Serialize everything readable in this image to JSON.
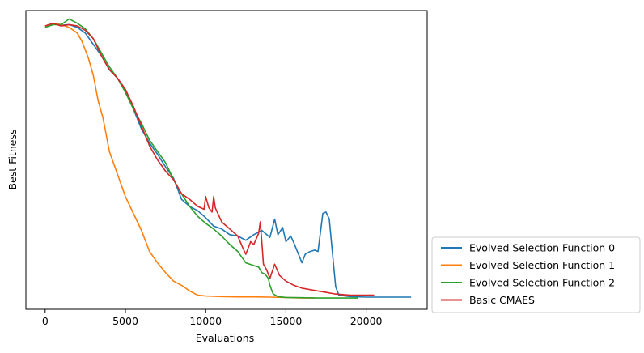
{
  "chart_data": {
    "type": "line",
    "title": "",
    "xlabel": "Evaluations",
    "ylabel": "Best Fitness",
    "xlim": [
      -1200,
      23800
    ],
    "ylim": [
      -0.3,
      10.3
    ],
    "xticks": [
      0,
      5000,
      10000,
      15000,
      20000
    ],
    "xtick_labels": [
      "0",
      "5000",
      "10000",
      "15000",
      "20000"
    ],
    "yticks_shown": false,
    "grid": false,
    "legend_placement": "outside-bottom-right",
    "series": [
      {
        "name": "Evolved Selection Function 0",
        "color": "#1f77b4",
        "x": [
          0,
          500,
          1000,
          1500,
          2000,
          2500,
          3000,
          3500,
          4000,
          4500,
          5000,
          5500,
          6000,
          6500,
          7000,
          7500,
          8000,
          8500,
          9000,
          9500,
          10000,
          10500,
          11000,
          11500,
          12000,
          12500,
          13000,
          13500,
          14000,
          14300,
          14500,
          14800,
          15000,
          15300,
          15500,
          16000,
          16200,
          16500,
          16800,
          17000,
          17300,
          17500,
          17700,
          17900,
          18100,
          18300,
          19000,
          20000,
          21000,
          22000,
          22800
        ],
        "y": [
          9.75,
          9.85,
          9.78,
          9.8,
          9.7,
          9.5,
          9.1,
          8.7,
          8.2,
          7.9,
          7.5,
          6.8,
          6.1,
          5.6,
          5.2,
          4.75,
          4.35,
          3.6,
          3.35,
          3.2,
          2.95,
          2.65,
          2.55,
          2.35,
          2.3,
          2.15,
          2.35,
          2.5,
          2.25,
          2.9,
          2.35,
          2.6,
          2.1,
          2.3,
          2.05,
          1.35,
          1.65,
          1.75,
          1.8,
          1.75,
          3.1,
          3.15,
          2.9,
          1.7,
          0.5,
          0.2,
          0.15,
          0.13,
          0.13,
          0.13,
          0.13
        ]
      },
      {
        "name": "Evolved Selection Function 1",
        "color": "#ff7f0e",
        "x": [
          0,
          500,
          1000,
          1500,
          2000,
          2300,
          2700,
          3000,
          3300,
          3600,
          4000,
          4500,
          5000,
          5500,
          6000,
          6500,
          7000,
          7500,
          8000,
          8500,
          9000,
          9500,
          10000,
          11000,
          12000,
          13000,
          14000,
          15000,
          16000,
          16800
        ],
        "y": [
          9.75,
          9.85,
          9.8,
          9.7,
          9.5,
          9.2,
          8.6,
          8.0,
          7.1,
          6.5,
          5.3,
          4.5,
          3.7,
          3.1,
          2.5,
          1.75,
          1.35,
          1.0,
          0.7,
          0.55,
          0.35,
          0.2,
          0.17,
          0.15,
          0.14,
          0.14,
          0.13,
          0.12,
          0.1,
          0.1
        ]
      },
      {
        "name": "Evolved Selection Function 2",
        "color": "#2ca02c",
        "x": [
          0,
          500,
          1000,
          1500,
          2000,
          2500,
          3000,
          3500,
          4000,
          4500,
          5000,
          5500,
          6000,
          6500,
          7000,
          7500,
          8000,
          8500,
          9000,
          9500,
          10000,
          10500,
          11000,
          11500,
          12000,
          12500,
          13000,
          13300,
          13500,
          13700,
          13900,
          14000,
          14200,
          14500,
          15000,
          16000,
          17000,
          18000,
          19000,
          19500
        ],
        "y": [
          9.7,
          9.8,
          9.8,
          10.0,
          9.85,
          9.65,
          9.3,
          8.8,
          8.3,
          7.9,
          7.4,
          6.8,
          6.3,
          5.7,
          5.3,
          4.9,
          4.3,
          3.8,
          3.35,
          3.0,
          2.75,
          2.55,
          2.3,
          2.0,
          1.75,
          1.35,
          1.25,
          1.2,
          1.0,
          0.95,
          0.8,
          0.55,
          0.25,
          0.15,
          0.12,
          0.11,
          0.1,
          0.1,
          0.1,
          0.1
        ]
      },
      {
        "name": "Basic CMAES",
        "color": "#d62728",
        "x": [
          0,
          500,
          1000,
          1500,
          2000,
          2500,
          3000,
          3500,
          4000,
          4500,
          5000,
          5500,
          6000,
          6500,
          7000,
          7500,
          8000,
          8500,
          9000,
          9500,
          9900,
          10000,
          10200,
          10400,
          10500,
          10600,
          11000,
          11500,
          12000,
          12300,
          12500,
          12800,
          13000,
          13300,
          13400,
          13500,
          13600,
          13800,
          14000,
          14300,
          14600,
          15000,
          15500,
          16000,
          17000,
          17500,
          18000,
          19000,
          20000,
          20500
        ],
        "y": [
          9.75,
          9.85,
          9.75,
          9.8,
          9.75,
          9.6,
          9.3,
          8.7,
          8.2,
          7.9,
          7.5,
          6.9,
          6.2,
          5.5,
          5.0,
          4.6,
          4.3,
          3.8,
          3.6,
          3.35,
          3.25,
          3.7,
          3.3,
          3.15,
          3.7,
          3.3,
          2.8,
          2.55,
          2.3,
          1.9,
          1.65,
          2.1,
          2.0,
          2.4,
          2.8,
          2.1,
          1.3,
          1.1,
          0.8,
          1.3,
          0.9,
          0.7,
          0.55,
          0.45,
          0.35,
          0.3,
          0.25,
          0.2,
          0.2,
          0.2
        ]
      }
    ]
  }
}
